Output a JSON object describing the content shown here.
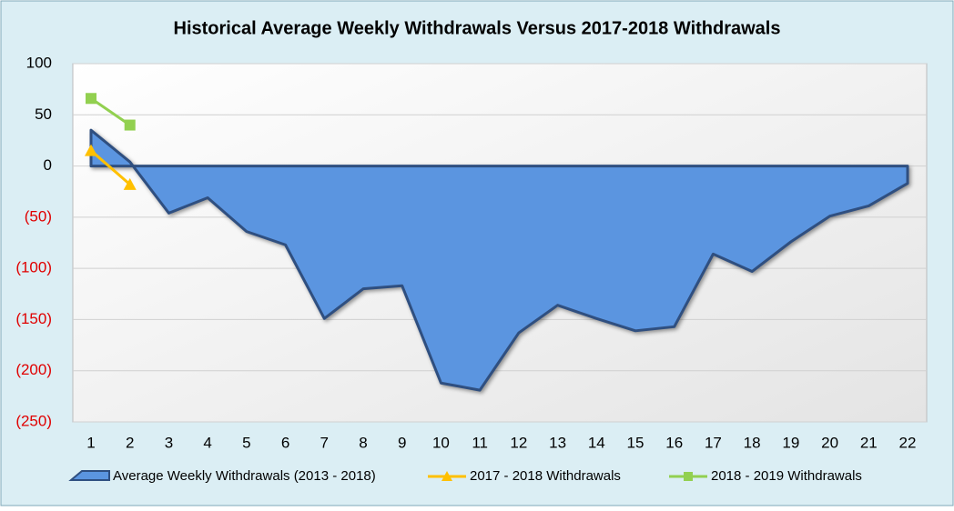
{
  "chart_data": {
    "type": "area-line",
    "title": "Historical Average Weekly Withdrawals Versus 2017-2018 Withdrawals",
    "categories": [
      "1",
      "2",
      "3",
      "4",
      "5",
      "6",
      "7",
      "8",
      "9",
      "10",
      "11",
      "12",
      "13",
      "14",
      "15",
      "16",
      "17",
      "18",
      "19",
      "20",
      "21",
      "22"
    ],
    "series": [
      {
        "name": "Average Weekly Withdrawals (2013 - 2018)",
        "kind": "area",
        "color": "#5b95e0",
        "values": [
          35,
          4,
          -46,
          -31,
          -64,
          -77,
          -149,
          -120,
          -117,
          -212,
          -219,
          -163,
          -136,
          -149,
          -161,
          -157,
          -86,
          -103,
          -74,
          -49,
          -39,
          -17
        ]
      },
      {
        "name": "2017 - 2018 Withdrawals",
        "kind": "line",
        "marker": "triangle",
        "color": "#ffc000",
        "values": [
          15,
          -18,
          null,
          null,
          null,
          null,
          null,
          null,
          null,
          null,
          null,
          null,
          null,
          null,
          null,
          null,
          null,
          null,
          null,
          null,
          null,
          null
        ]
      },
      {
        "name": "2018 - 2019 Withdrawals",
        "kind": "line",
        "marker": "square",
        "color": "#92d050",
        "values": [
          66,
          40,
          null,
          null,
          null,
          null,
          null,
          null,
          null,
          null,
          null,
          null,
          null,
          null,
          null,
          null,
          null,
          null,
          null,
          null,
          null,
          null
        ]
      }
    ],
    "ylim": [
      -250,
      100
    ],
    "yticks": [
      {
        "value": -250,
        "label": "(250)"
      },
      {
        "value": -200,
        "label": "(200)"
      },
      {
        "value": -150,
        "label": "(150)"
      },
      {
        "value": -100,
        "label": "(100)"
      },
      {
        "value": -50,
        "label": "(50)"
      },
      0,
      50,
      100
    ],
    "grid": true,
    "legend": "bottom"
  }
}
